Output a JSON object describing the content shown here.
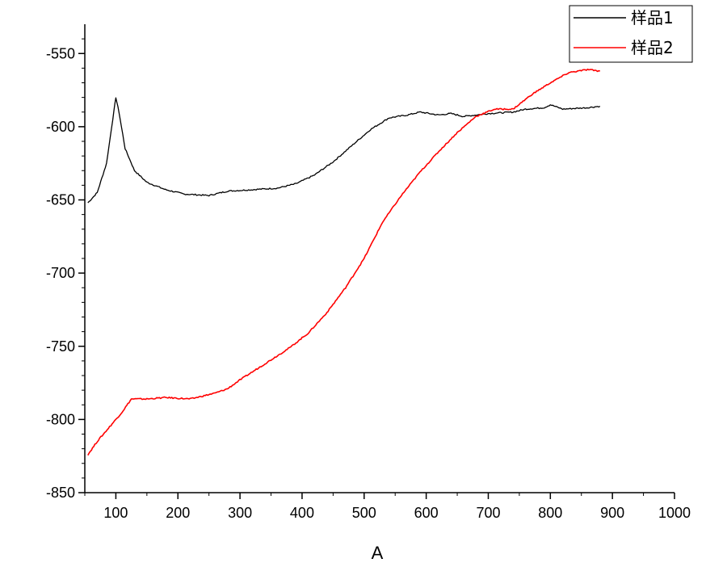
{
  "chart_data": {
    "type": "line",
    "title": "",
    "xlabel": "A",
    "ylabel": "",
    "xlim": [
      50,
      1000
    ],
    "ylim": [
      -850,
      -530
    ],
    "x_ticks": [
      100,
      200,
      300,
      400,
      500,
      600,
      700,
      800,
      900,
      1000
    ],
    "y_ticks": [
      -550,
      -600,
      -650,
      -700,
      -750,
      -800,
      -850
    ],
    "grid": false,
    "legend_position": "top-right",
    "series": [
      {
        "name": "样品1",
        "color": "#000000",
        "x": [
          55,
          70,
          85,
          95,
          100,
          105,
          115,
          130,
          150,
          180,
          210,
          250,
          280,
          320,
          360,
          390,
          420,
          450,
          480,
          510,
          540,
          570,
          590,
          620,
          640,
          660,
          700,
          740,
          760,
          790,
          800,
          820,
          860,
          880
        ],
        "y": [
          -652,
          -645,
          -625,
          -595,
          -580,
          -590,
          -615,
          -630,
          -638,
          -643,
          -646,
          -647,
          -644,
          -643,
          -642,
          -639,
          -633,
          -624,
          -613,
          -602,
          -594,
          -592,
          -590,
          -592,
          -591,
          -593,
          -591,
          -590,
          -588,
          -587,
          -585,
          -588,
          -587,
          -586
        ]
      },
      {
        "name": "样品2",
        "color": "#ff0000",
        "x": [
          55,
          70,
          90,
          110,
          125,
          150,
          180,
          220,
          260,
          280,
          300,
          340,
          380,
          410,
          440,
          470,
          500,
          530,
          560,
          590,
          620,
          650,
          680,
          710,
          740,
          770,
          800,
          830,
          860,
          880
        ],
        "y": [
          -824,
          -815,
          -805,
          -795,
          -786,
          -786,
          -785,
          -786,
          -782,
          -779,
          -773,
          -762,
          -751,
          -741,
          -727,
          -710,
          -690,
          -665,
          -647,
          -631,
          -617,
          -604,
          -593,
          -588,
          -588,
          -578,
          -570,
          -563,
          -561,
          -562
        ]
      }
    ]
  }
}
